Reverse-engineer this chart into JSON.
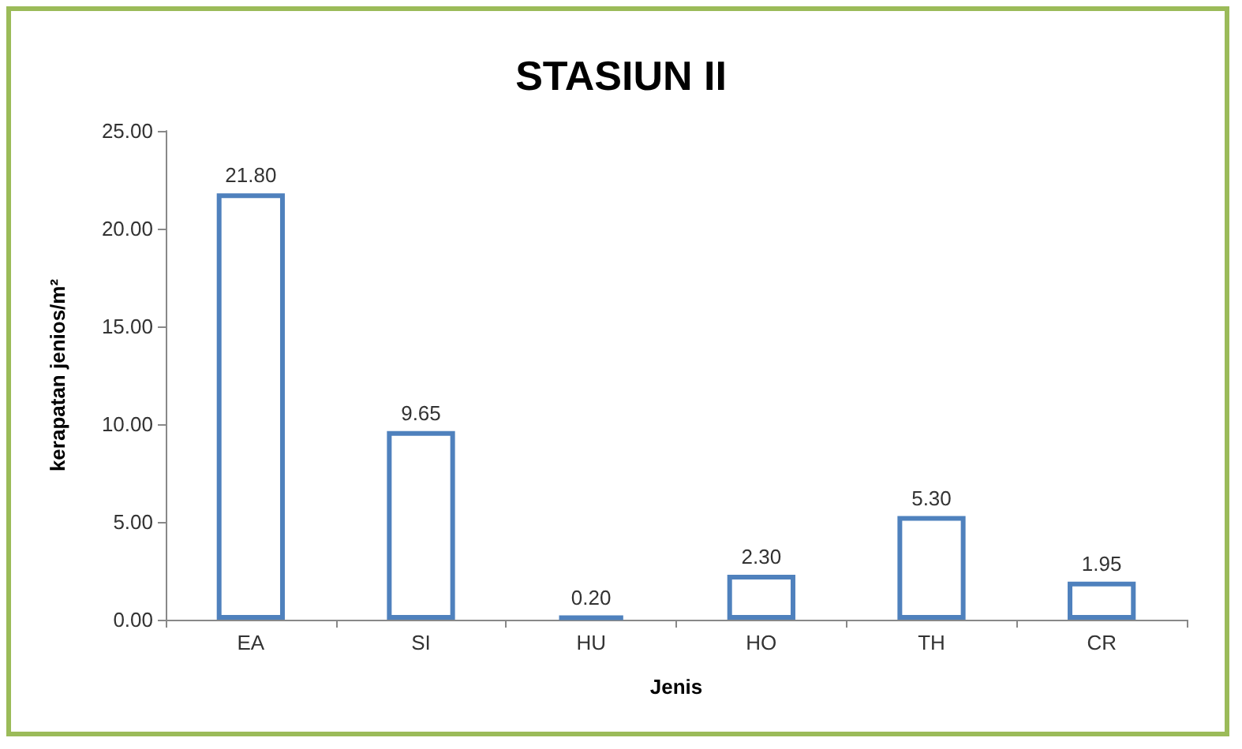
{
  "chart_data": {
    "type": "bar",
    "title": "STASIUN II",
    "xlabel": "Jenis",
    "ylabel": "kerapatan jenios/m²",
    "categories": [
      "EA",
      "SI",
      "HU",
      "HO",
      "TH",
      "CR"
    ],
    "values": [
      21.8,
      9.65,
      0.2,
      2.3,
      5.3,
      1.95
    ],
    "value_labels": [
      "21.80",
      "9.65",
      "0.20",
      "2.30",
      "5.30",
      "1.95"
    ],
    "color": "#4f81bd",
    "ylim": [
      0,
      25
    ],
    "yticks": [
      {
        "value": 0,
        "label": "0.00"
      },
      {
        "value": 5,
        "label": "5.00"
      },
      {
        "value": 10,
        "label": "10.00"
      },
      {
        "value": 15,
        "label": "15.00"
      },
      {
        "value": 20,
        "label": "20.00"
      },
      {
        "value": 25,
        "label": "25.00"
      }
    ],
    "grid": false
  }
}
